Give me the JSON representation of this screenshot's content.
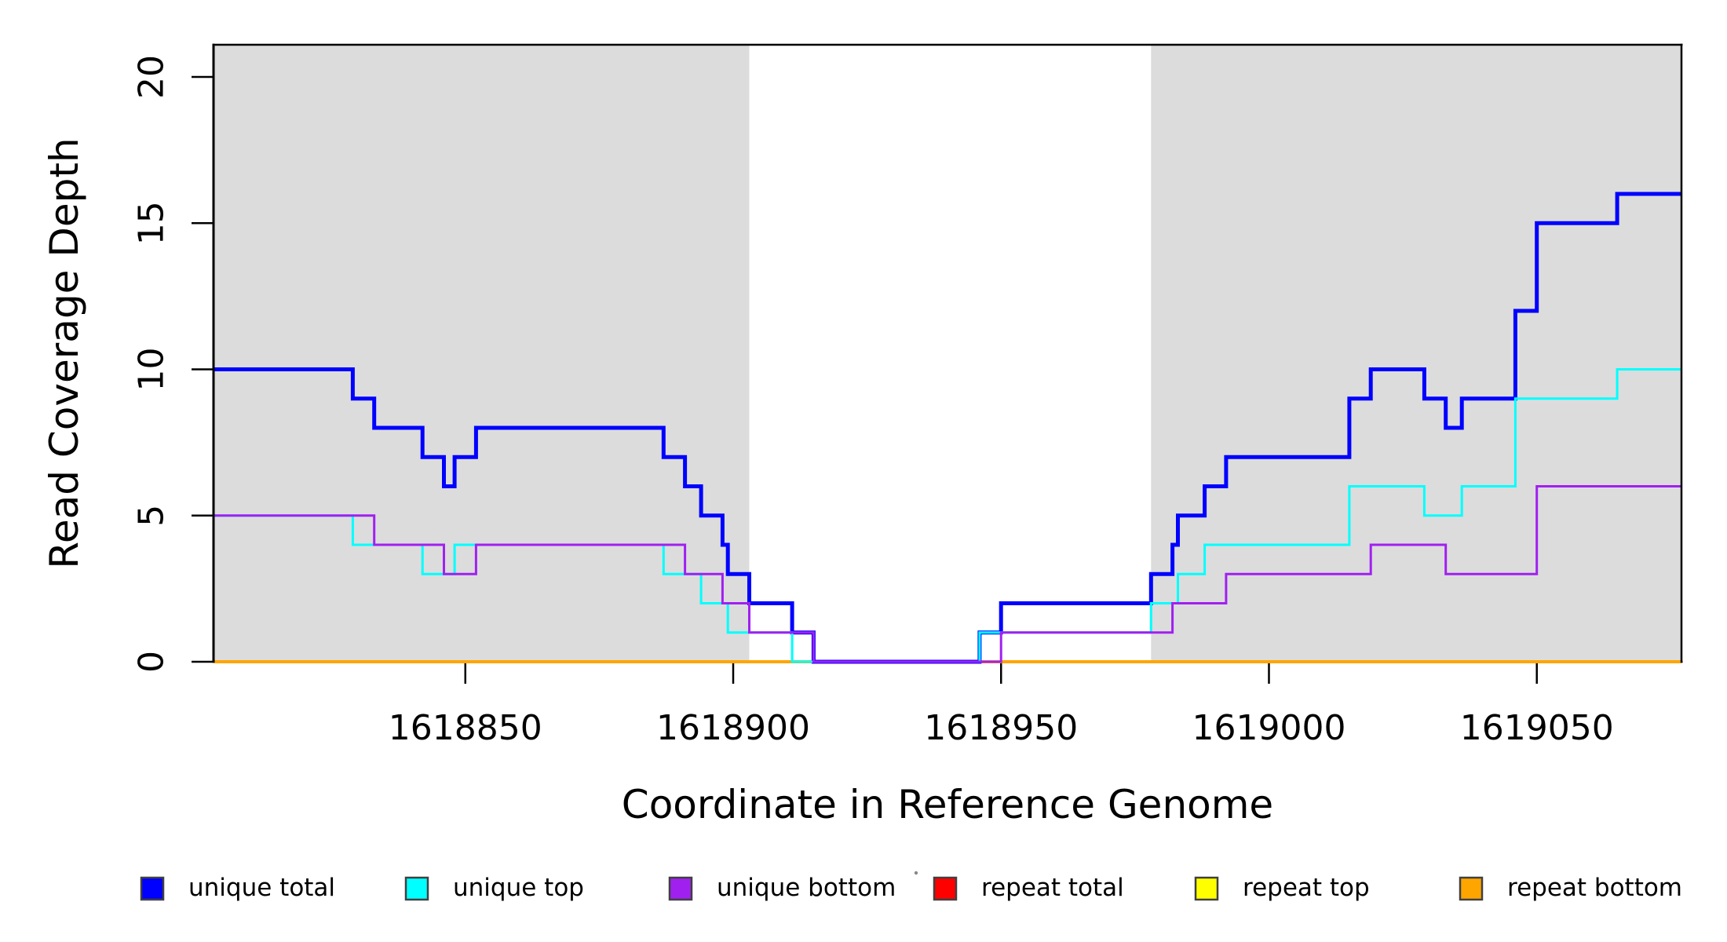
{
  "figure": {
    "y_axis": {
      "label": "Read Coverage Depth",
      "ticks": [
        0,
        5,
        10,
        15,
        20
      ]
    },
    "x_axis": {
      "label": "Coordinate in Reference Genome",
      "ticks": [
        1618850,
        1618900,
        1618950,
        1619000,
        1619050
      ]
    },
    "highlight_regions": [
      {
        "start": 1618803,
        "end": 1618903
      },
      {
        "start": 1618978,
        "end": 1619077
      }
    ],
    "region_color": "#DCDCDC",
    "axis_color": "#000000",
    "chart_data": {
      "type": "line",
      "style": "step",
      "title": "",
      "xlabel": "Coordinate in Reference Genome",
      "ylabel": "Read Coverage Depth",
      "xlim": [
        1618803,
        1619077
      ],
      "ylim": [
        0,
        21.1
      ],
      "grid": false,
      "legend_position": "bottom",
      "series": [
        {
          "name": "repeat total",
          "color": "#FF0000",
          "width": 3,
          "steps": [
            [
              1618803,
              0
            ]
          ]
        },
        {
          "name": "repeat top",
          "color": "#FFFF00",
          "width": 3,
          "steps": [
            [
              1618803,
              0
            ]
          ]
        },
        {
          "name": "repeat bottom",
          "color": "#FFA500",
          "width": 4,
          "steps": [
            [
              1618803,
              0
            ]
          ]
        },
        {
          "name": "unique total",
          "color": "#0000FF",
          "width": 5,
          "steps": [
            [
              1618803,
              10
            ],
            [
              1618829,
              9
            ],
            [
              1618833,
              8
            ],
            [
              1618842,
              7
            ],
            [
              1618846,
              6
            ],
            [
              1618848,
              7
            ],
            [
              1618852,
              8
            ],
            [
              1618887,
              7
            ],
            [
              1618891,
              6
            ],
            [
              1618894,
              5
            ],
            [
              1618898,
              4
            ],
            [
              1618899,
              3
            ],
            [
              1618903,
              2
            ],
            [
              1618911,
              1
            ],
            [
              1618915,
              0
            ],
            [
              1618946,
              1
            ],
            [
              1618950,
              2
            ],
            [
              1618978,
              3
            ],
            [
              1618982,
              4
            ],
            [
              1618983,
              5
            ],
            [
              1618988,
              6
            ],
            [
              1618992,
              7
            ],
            [
              1619015,
              9
            ],
            [
              1619019,
              10
            ],
            [
              1619029,
              9
            ],
            [
              1619033,
              8
            ],
            [
              1619036,
              9
            ],
            [
              1619046,
              12
            ],
            [
              1619050,
              15
            ],
            [
              1619065,
              16
            ]
          ]
        },
        {
          "name": "unique top",
          "color": "#00FFFF",
          "width": 3,
          "steps": [
            [
              1618803,
              5
            ],
            [
              1618829,
              4
            ],
            [
              1618842,
              3
            ],
            [
              1618848,
              4
            ],
            [
              1618887,
              3
            ],
            [
              1618894,
              2
            ],
            [
              1618899,
              1
            ],
            [
              1618911,
              0
            ],
            [
              1618946,
              1
            ],
            [
              1618978,
              2
            ],
            [
              1618983,
              3
            ],
            [
              1618988,
              4
            ],
            [
              1619015,
              6
            ],
            [
              1619029,
              5
            ],
            [
              1619036,
              6
            ],
            [
              1619046,
              9
            ],
            [
              1619065,
              10
            ]
          ]
        },
        {
          "name": "unique bottom",
          "color": "#A020F0",
          "width": 3,
          "steps": [
            [
              1618803,
              5
            ],
            [
              1618833,
              4
            ],
            [
              1618846,
              3
            ],
            [
              1618852,
              4
            ],
            [
              1618891,
              3
            ],
            [
              1618898,
              2
            ],
            [
              1618903,
              1
            ],
            [
              1618915,
              0
            ],
            [
              1618950,
              1
            ],
            [
              1618982,
              2
            ],
            [
              1618992,
              3
            ],
            [
              1619019,
              4
            ],
            [
              1619033,
              3
            ],
            [
              1619050,
              6
            ]
          ]
        }
      ]
    }
  },
  "legend": {
    "items": [
      {
        "label": "unique total",
        "color": "#0000FF"
      },
      {
        "label": "unique top",
        "color": "#00FFFF"
      },
      {
        "label": "unique bottom",
        "color": "#A020F0"
      },
      {
        "label": "repeat total",
        "color": "#FF0000"
      },
      {
        "label": "repeat top",
        "color": "#FFFF00"
      },
      {
        "label": "repeat bottom",
        "color": "#FFA500"
      }
    ]
  }
}
